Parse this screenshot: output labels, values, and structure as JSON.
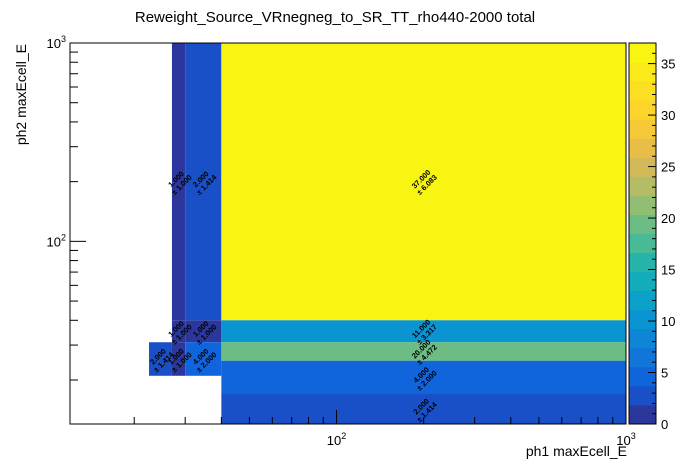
{
  "chart_data": {
    "type": "heatmap",
    "title": "Reweight_Source_VRnegneg_to_SR_TT_rho440-2000 total",
    "xlabel": "ph1 maxEcell_E",
    "ylabel": "ph2 maxEcell_E",
    "x_scale": "log",
    "y_scale": "log",
    "xlim": [
      12,
      1000
    ],
    "ylim": [
      12,
      1000
    ],
    "x_tick_labels": [
      "10^2",
      "10^3"
    ],
    "y_tick_labels": [
      "10^2",
      "10^3"
    ],
    "zlim": [
      0,
      37
    ],
    "z_ticks": [
      0,
      5,
      10,
      15,
      20,
      25,
      30,
      35
    ],
    "cells": [
      {
        "x": [
          27,
          30
        ],
        "y": [
          40,
          1000
        ],
        "value": 1,
        "label": [
          "1.000",
          "± 1.000"
        ]
      },
      {
        "x": [
          30,
          40
        ],
        "y": [
          40,
          1000
        ],
        "value": 2,
        "label": [
          "2.000",
          "± 1.414"
        ]
      },
      {
        "x": [
          40,
          1000
        ],
        "y": [
          40,
          1000
        ],
        "value": 37,
        "label": [
          "37.000",
          "± 6.083"
        ]
      },
      {
        "x": [
          27,
          30
        ],
        "y": [
          31,
          40
        ],
        "value": 1,
        "label": [
          "1.000",
          "± 1.000"
        ]
      },
      {
        "x": [
          30,
          40
        ],
        "y": [
          31,
          40
        ],
        "value": 1,
        "label": [
          "1.000",
          "± 1.000"
        ]
      },
      {
        "x": [
          40,
          1000
        ],
        "y": [
          31,
          40
        ],
        "value": 11,
        "label": [
          "11.000",
          "± 3.317"
        ]
      },
      {
        "x": [
          22.5,
          27
        ],
        "y": [
          21,
          31
        ],
        "value": 2,
        "label": [
          "2.000",
          "± 1.414"
        ]
      },
      {
        "x": [
          27,
          30
        ],
        "y": [
          21,
          31
        ],
        "value": 1,
        "label": [
          "1.000",
          "± 1.000"
        ]
      },
      {
        "x": [
          30,
          40
        ],
        "y": [
          21,
          31
        ],
        "value": 4,
        "label": [
          "4.000",
          "± 2.000"
        ]
      },
      {
        "x": [
          40,
          1000
        ],
        "y": [
          25,
          31
        ],
        "value": 20,
        "label": [
          "20.000",
          "± 4.472"
        ]
      },
      {
        "x": [
          40,
          1000
        ],
        "y": [
          17,
          25
        ],
        "value": 4,
        "label": [
          "4.000",
          "± 2.000"
        ]
      },
      {
        "x": [
          40,
          1000
        ],
        "y": [
          12,
          17
        ],
        "value": 2,
        "label": [
          "2.000",
          "± 1.414"
        ]
      }
    ]
  }
}
